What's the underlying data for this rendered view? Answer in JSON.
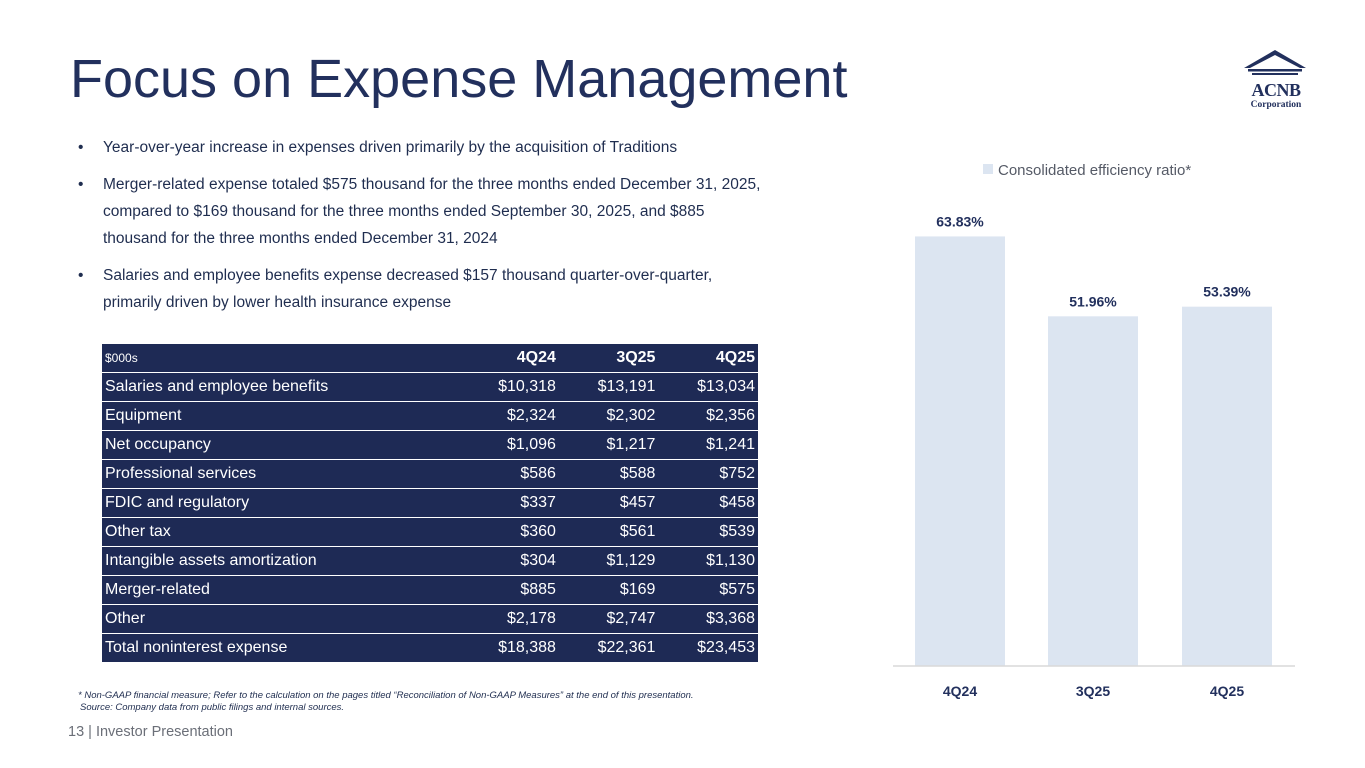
{
  "header": {
    "title": "Focus on Expense Management",
    "logo_main": "ACNB",
    "logo_sub": "Corporation"
  },
  "bullets": [
    "Year-over-year increase in expenses driven primarily by the acquisition of Traditions",
    "Merger-related expense totaled $575 thousand for the three months ended December 31, 2025, compared to $169 thousand for the three months ended September 30, 2025, and $885 thousand for the three months ended December 31, 2024",
    "Salaries and employee benefits expense decreased $157 thousand quarter-over-quarter, primarily driven by lower health insurance expense"
  ],
  "table": {
    "unit": "$000s",
    "columns": [
      "4Q24",
      "3Q25",
      "4Q25"
    ],
    "rows": [
      {
        "label": "Salaries and employee benefits",
        "values": [
          "$10,318",
          "$13,191",
          "$13,034"
        ]
      },
      {
        "label": "Equipment",
        "values": [
          "$2,324",
          "$2,302",
          "$2,356"
        ]
      },
      {
        "label": "Net occupancy",
        "values": [
          "$1,096",
          "$1,217",
          "$1,241"
        ]
      },
      {
        "label": "Professional services",
        "values": [
          "$586",
          "$588",
          "$752"
        ]
      },
      {
        "label": "FDIC and regulatory",
        "values": [
          "$337",
          "$457",
          "$458"
        ]
      },
      {
        "label": "Other tax",
        "values": [
          "$360",
          "$561",
          "$539"
        ]
      },
      {
        "label": "Intangible assets amortization",
        "values": [
          "$304",
          "$1,129",
          "$1,130"
        ]
      },
      {
        "label": "Merger-related",
        "values": [
          "$885",
          "$169",
          "$575"
        ]
      },
      {
        "label": "Other",
        "values": [
          "$2,178",
          "$2,747",
          "$3,368"
        ]
      },
      {
        "label": "Total noninterest expense",
        "values": [
          "$18,388",
          "$22,361",
          "$23,453"
        ]
      }
    ]
  },
  "footnote": {
    "line1": "* Non-GAAP financial measure; Refer to the calculation on the pages titled “Reconciliation of Non-GAAP Measures” at the end of this presentation.",
    "line2": "Source: Company data from public filings and internal sources."
  },
  "footer": {
    "page_number": "13",
    "label": "| Investor Presentation"
  },
  "colors": {
    "navy": "#22305d",
    "table_bg": "#1e2a55",
    "bar": "#dce5f1",
    "axis": "#d9d9d9"
  },
  "chart_data": {
    "type": "bar",
    "title": "",
    "legend": "Consolidated efficiency ratio*",
    "legend_position": "top",
    "categories": [
      "4Q24",
      "3Q25",
      "4Q25"
    ],
    "values": [
      63.83,
      51.96,
      53.39
    ],
    "data_labels": [
      "63.83%",
      "51.96%",
      "53.39%"
    ],
    "xlabel": "",
    "ylabel": "",
    "ylim": [
      0,
      70
    ],
    "grid": false
  }
}
